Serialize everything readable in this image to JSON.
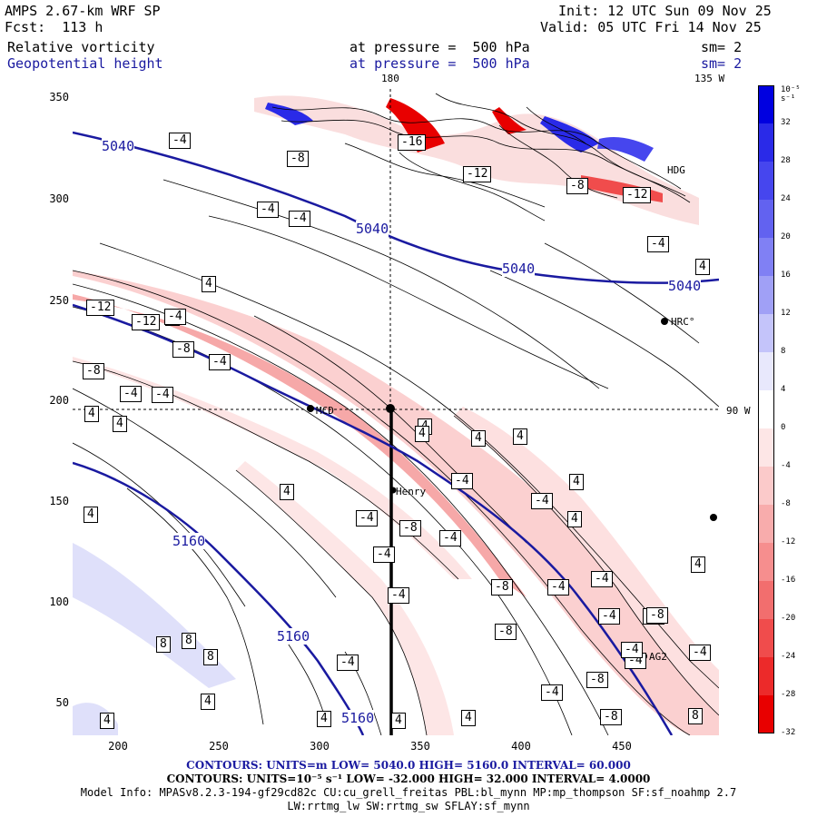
{
  "header": {
    "model": "AMPS 2.67-km WRF SP",
    "init": "Init: 12 UTC Sun 09 Nov 25",
    "fcst": "Fcst:  113 h",
    "valid": "Valid: 05 UTC Fri 14 Nov 25",
    "field1": "Relative vorticity",
    "field1_level": "at pressure =  500 hPa",
    "field1_sm": "sm= 2",
    "field2": "Geopotential height",
    "field2_level": "at pressure =  500 hPa",
    "field2_sm": "sm= 2"
  },
  "map_labels": {
    "lon_180": "180",
    "lon_135w": "135 W",
    "lon_90w": "90 W",
    "stations": [
      "MCD",
      "Henry",
      "HRC°",
      "AG2",
      "HDG"
    ]
  },
  "axes": {
    "x_ticks": [
      "200",
      "250",
      "300",
      "350",
      "400",
      "450"
    ],
    "y_ticks": [
      "350",
      "300",
      "250",
      "200",
      "150",
      "100",
      "50"
    ]
  },
  "height_contours": [
    "5040",
    "5040",
    "5040",
    "5040",
    "5160",
    "5160",
    "5160"
  ],
  "vort_labels": [
    "-4",
    "-8",
    "-4",
    "-4",
    "-16",
    "-12",
    "-8",
    "-12",
    "-4",
    "4",
    "4",
    "-12",
    "-12",
    "-4",
    "-8",
    "-4",
    "-8",
    "-4",
    "-4",
    "4",
    "4",
    "4",
    "-4",
    "4",
    "4",
    "4",
    "-4",
    "-4",
    "4",
    "-4",
    "-8",
    "-4",
    "-4",
    "-8",
    "-4",
    "-8",
    "-4",
    "-4",
    "-4",
    "-8",
    "8",
    "8",
    "8",
    "4",
    "4",
    "4",
    "4",
    "8",
    "-4",
    "4",
    "-8",
    "-4",
    "-8",
    "-8",
    "4",
    "-4",
    "4",
    "4",
    "4",
    "-4",
    "4"
  ],
  "colorbar": {
    "unit": "10⁻⁵ s⁻¹",
    "labels": [
      "32",
      "28",
      "24",
      "20",
      "16",
      "12",
      "8",
      "4",
      "0",
      "-4",
      "-8",
      "-12",
      "-16",
      "-20",
      "-24",
      "-28",
      "-32"
    ],
    "colors": [
      "#0000e0",
      "#2a2ae8",
      "#4646ee",
      "#6262f0",
      "#8080f4",
      "#a0a0f6",
      "#c4c4fa",
      "#e8e8fc",
      "#ffffff",
      "#fde6e6",
      "#fbcaca",
      "#f8acac",
      "#f68e8e",
      "#f26e6e",
      "#f04c4c",
      "#ec2a2a",
      "#e80000"
    ]
  },
  "footer": {
    "c1": "CONTOURS:  UNITS=m  LOW=  5040.0        HIGH=  5160.0       INTERVAL=   60.000",
    "c2": "CONTOURS:  UNITS=10⁻⁵ s⁻¹   LOW= -32.000        HIGH= 32.000      INTERVAL=   4.0000",
    "model_info": "Model Info: MPASv8.2.3-194-gf29cd82c CU:cu_grell_freitas PBL:bl_mynn MP:mp_thompson SF:sf_noahmp 2.7",
    "model_info2": "LW:rrtmg_lw SW:rrtmg_sw SFLAY:sf_mynn"
  }
}
